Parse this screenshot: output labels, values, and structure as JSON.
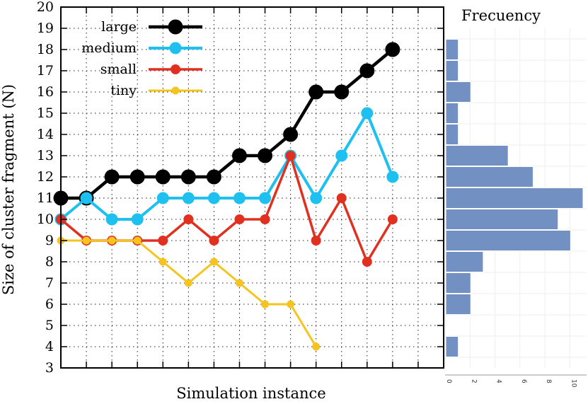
{
  "chart_data": [
    {
      "type": "line",
      "xlabel": "Simulation instance",
      "ylabel": "Size of cluster fragment (N)",
      "x": [
        1,
        2,
        3,
        4,
        5,
        6,
        7,
        8,
        9,
        10,
        11,
        12,
        13,
        14
      ],
      "xlim": [
        1,
        16
      ],
      "ylim": [
        3,
        20
      ],
      "yticks": [
        3,
        4,
        5,
        6,
        7,
        8,
        9,
        10,
        11,
        12,
        13,
        14,
        15,
        16,
        17,
        18,
        19,
        20
      ],
      "grid": true,
      "legend_position": "top-left",
      "series": [
        {
          "name": "large",
          "color": "#000000",
          "marker_size": "large",
          "x": [
            1,
            2,
            3,
            4,
            5,
            6,
            7,
            8,
            9,
            10,
            11,
            12,
            13,
            14
          ],
          "y": [
            11,
            11,
            12,
            12,
            12,
            12,
            12,
            13,
            13,
            14,
            16,
            16,
            17,
            18
          ]
        },
        {
          "name": "medium",
          "color": "#1ec0f0",
          "marker_size": "medium",
          "x": [
            1,
            2,
            3,
            4,
            5,
            6,
            7,
            8,
            9,
            10,
            11,
            12,
            13,
            14
          ],
          "y": [
            10,
            11,
            10,
            10,
            11,
            11,
            11,
            11,
            11,
            13,
            11,
            13,
            15,
            12
          ]
        },
        {
          "name": "small",
          "color": "#e03020",
          "marker_size": "small",
          "x": [
            1,
            2,
            3,
            4,
            5,
            6,
            7,
            8,
            9,
            10,
            11,
            12,
            13,
            14
          ],
          "y": [
            10,
            9,
            9,
            9,
            9,
            10,
            9,
            10,
            10,
            13,
            9,
            11,
            8,
            10
          ]
        },
        {
          "name": "tiny",
          "color": "#f5c41e",
          "marker_size": "tiny",
          "x": [
            1,
            2,
            3,
            4,
            5,
            6,
            7,
            8,
            9,
            10,
            11
          ],
          "y": [
            9,
            9,
            9,
            9,
            8,
            7,
            8,
            7,
            6,
            6,
            4
          ]
        }
      ]
    },
    {
      "type": "bar",
      "orientation": "horizontal",
      "title": "Frecuency",
      "color": "#7390c2",
      "categories": [
        4,
        5,
        6,
        7,
        8,
        9,
        10,
        11,
        12,
        13,
        14,
        15,
        16,
        17,
        18
      ],
      "values": [
        1,
        0,
        2,
        2,
        3,
        10,
        9,
        11,
        7,
        5,
        1,
        1,
        2,
        1,
        1
      ],
      "xticks": [
        0,
        2,
        4,
        6,
        8,
        10
      ],
      "xlim": [
        0,
        11
      ]
    }
  ]
}
